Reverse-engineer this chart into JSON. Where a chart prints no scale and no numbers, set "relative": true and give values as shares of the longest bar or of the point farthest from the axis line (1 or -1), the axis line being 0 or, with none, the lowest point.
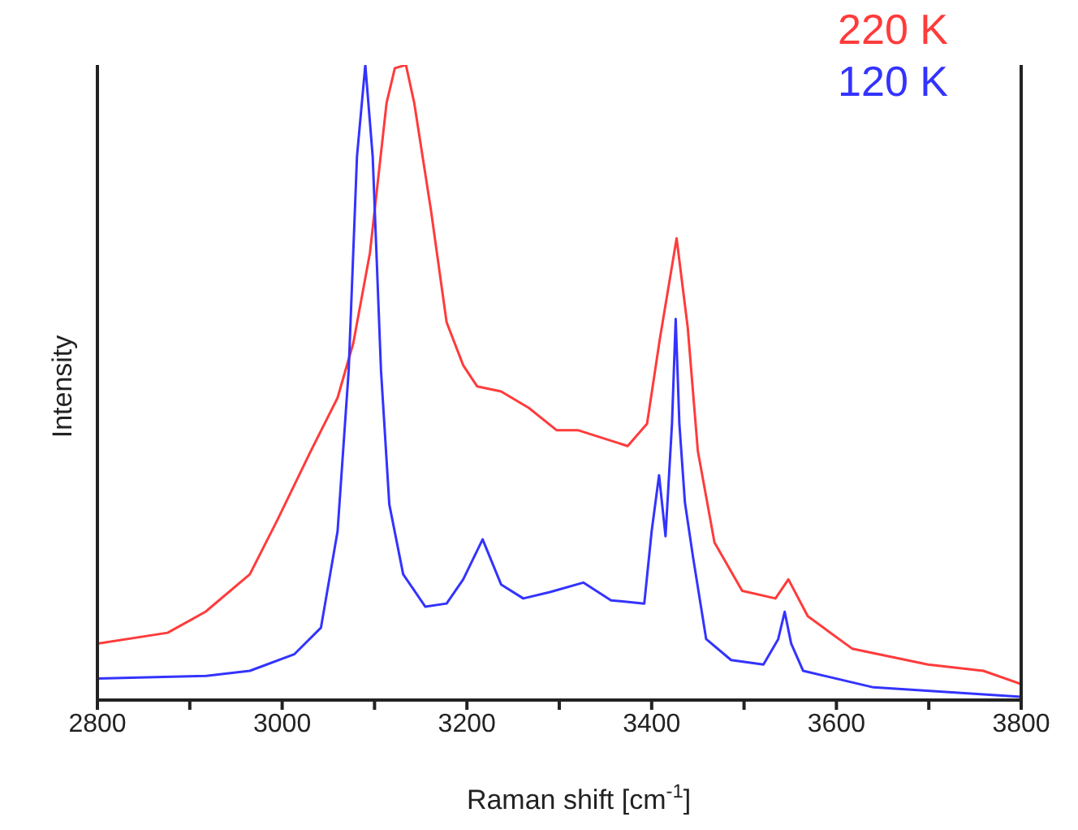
{
  "chart_data": {
    "type": "line",
    "xlabel": "Raman shift [cm$^{-1}$]",
    "ylabel": "Intensity",
    "relative": true,
    "xlim": [
      2800,
      3800
    ],
    "xticks": [
      2800,
      {
        "value": 2900,
        "label": null
      },
      3000,
      {
        "value": 3100,
        "label": null
      },
      3200,
      {
        "value": 3300,
        "label": null
      },
      3400,
      {
        "value": 3500,
        "label": null
      },
      3600,
      {
        "value": 3700,
        "label": null
      },
      3800
    ],
    "tick_labels": "x",
    "legend": "top right",
    "marker": "none",
    "line_style": "solid",
    "series": [
      {
        "name": "220 K",
        "color": "#ff3b3b",
        "x": [
          2800,
          2876,
          2917,
          2965,
          2995,
          3031,
          3060,
          3077,
          3095,
          3113,
          3122,
          3134,
          3143,
          3161,
          3178,
          3196,
          3211,
          3237,
          3267,
          3297,
          3320,
          3374,
          3395,
          3409,
          3427,
          3439,
          3450,
          3468,
          3498,
          3534,
          3548,
          3569,
          3617,
          3699,
          3759,
          3800
        ],
        "values": [
          0.089,
          0.106,
          0.139,
          0.198,
          0.284,
          0.392,
          0.476,
          0.562,
          0.704,
          0.94,
          0.995,
          1,
          0.94,
          0.772,
          0.595,
          0.527,
          0.494,
          0.486,
          0.46,
          0.425,
          0.425,
          0.4,
          0.435,
          0.57,
          0.727,
          0.587,
          0.392,
          0.248,
          0.172,
          0.16,
          0.19,
          0.132,
          0.081,
          0.056,
          0.046,
          0.025
        ]
      },
      {
        "name": "120 K",
        "color": "#3333ff",
        "x": [
          2800,
          2917,
          2965,
          3013,
          3042,
          3060,
          3072,
          3081,
          3090,
          3098,
          3107,
          3116,
          3131,
          3155,
          3178,
          3196,
          3217,
          3237,
          3261,
          3290,
          3326,
          3356,
          3392,
          3400,
          3408,
          3415,
          3422,
          3426,
          3430,
          3436,
          3445,
          3459,
          3486,
          3521,
          3537,
          3544,
          3551,
          3564,
          3640,
          3800
        ],
        "values": [
          0.034,
          0.038,
          0.046,
          0.072,
          0.114,
          0.266,
          0.519,
          0.856,
          1,
          0.856,
          0.519,
          0.308,
          0.198,
          0.147,
          0.152,
          0.19,
          0.253,
          0.182,
          0.16,
          0.17,
          0.185,
          0.157,
          0.152,
          0.266,
          0.354,
          0.258,
          0.435,
          0.6,
          0.435,
          0.311,
          0.223,
          0.096,
          0.063,
          0.056,
          0.096,
          0.139,
          0.089,
          0.046,
          0.02,
          0.005
        ]
      }
    ]
  }
}
